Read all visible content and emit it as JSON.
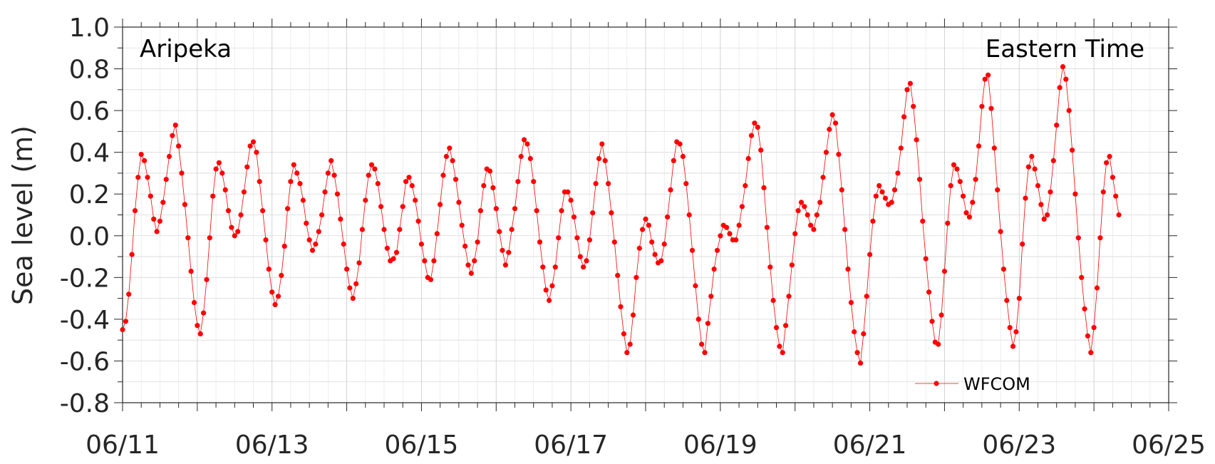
{
  "chart_data": {
    "type": "line",
    "station": "Aripeka",
    "timezone": "Eastern Time",
    "ylabel": "Sea level (m)",
    "xlabel": "",
    "ylim": [
      -0.8,
      1.0
    ],
    "xlim": [
      "06/11",
      "06/25"
    ],
    "y_ticks": [
      "1.0",
      "0.8",
      "0.6",
      "0.4",
      "0.2",
      "0.0",
      "-0.2",
      "-0.4",
      "-0.6",
      "-0.8"
    ],
    "x_ticks": [
      "06/11",
      "06/13",
      "06/15",
      "06/17",
      "06/19",
      "06/21",
      "06/23",
      "06/25"
    ],
    "grid": true,
    "legend_position": "bottom-right",
    "line_color": "#ff0000",
    "series": [
      {
        "name": "WFCOM",
        "start": "06/11 00:00",
        "interval_hours": 1,
        "values": [
          -0.45,
          -0.41,
          -0.28,
          -0.09,
          0.12,
          0.28,
          0.39,
          0.36,
          0.28,
          0.19,
          0.08,
          0.02,
          0.07,
          0.16,
          0.27,
          0.38,
          0.48,
          0.53,
          0.43,
          0.3,
          0.15,
          -0.01,
          -0.17,
          -0.32,
          -0.43,
          -0.47,
          -0.37,
          -0.21,
          -0.01,
          0.19,
          0.32,
          0.35,
          0.3,
          0.22,
          0.12,
          0.04,
          0.0,
          0.02,
          0.1,
          0.21,
          0.33,
          0.43,
          0.45,
          0.4,
          0.26,
          0.12,
          -0.02,
          -0.16,
          -0.27,
          -0.33,
          -0.29,
          -0.19,
          -0.05,
          0.13,
          0.26,
          0.34,
          0.3,
          0.25,
          0.17,
          0.06,
          -0.02,
          -0.07,
          -0.04,
          0.02,
          0.1,
          0.21,
          0.3,
          0.36,
          0.29,
          0.2,
          0.08,
          -0.04,
          -0.16,
          -0.25,
          -0.3,
          -0.23,
          -0.13,
          0.03,
          0.17,
          0.29,
          0.34,
          0.32,
          0.25,
          0.14,
          0.03,
          -0.06,
          -0.12,
          -0.11,
          -0.08,
          0.03,
          0.14,
          0.26,
          0.28,
          0.24,
          0.17,
          0.07,
          -0.04,
          -0.12,
          -0.2,
          -0.21,
          -0.12,
          0.01,
          0.15,
          0.29,
          0.38,
          0.42,
          0.36,
          0.27,
          0.16,
          0.05,
          -0.05,
          -0.14,
          -0.18,
          -0.12,
          -0.03,
          0.12,
          0.24,
          0.32,
          0.31,
          0.23,
          0.13,
          0.02,
          -0.07,
          -0.14,
          -0.08,
          0.03,
          0.13,
          0.26,
          0.38,
          0.46,
          0.44,
          0.37,
          0.26,
          0.12,
          -0.03,
          -0.15,
          -0.26,
          -0.31,
          -0.24,
          -0.15,
          -0.01,
          0.12,
          0.21,
          0.21,
          0.17,
          0.09,
          -0.01,
          -0.1,
          -0.15,
          -0.12,
          -0.02,
          0.11,
          0.25,
          0.37,
          0.44,
          0.36,
          0.25,
          0.11,
          -0.03,
          -0.19,
          -0.34,
          -0.47,
          -0.56,
          -0.52,
          -0.38,
          -0.2,
          -0.06,
          0.03,
          0.08,
          0.05,
          -0.03,
          -0.09,
          -0.13,
          -0.12,
          -0.04,
          0.09,
          0.22,
          0.36,
          0.45,
          0.44,
          0.38,
          0.25,
          0.1,
          -0.07,
          -0.24,
          -0.4,
          -0.52,
          -0.56,
          -0.42,
          -0.29,
          -0.16,
          -0.07,
          0.0,
          0.05,
          0.04,
          0.01,
          -0.02,
          -0.02,
          0.05,
          0.14,
          0.24,
          0.37,
          0.48,
          0.54,
          0.52,
          0.41,
          0.23,
          0.04,
          -0.15,
          -0.31,
          -0.44,
          -0.53,
          -0.56,
          -0.43,
          -0.29,
          -0.14,
          0.01,
          0.12,
          0.16,
          0.14,
          0.1,
          0.05,
          0.03,
          0.1,
          0.16,
          0.28,
          0.4,
          0.51,
          0.58,
          0.54,
          0.39,
          0.22,
          0.03,
          -0.16,
          -0.32,
          -0.46,
          -0.56,
          -0.61,
          -0.47,
          -0.29,
          -0.09,
          0.07,
          0.19,
          0.24,
          0.21,
          0.18,
          0.15,
          0.16,
          0.22,
          0.3,
          0.42,
          0.57,
          0.7,
          0.73,
          0.62,
          0.46,
          0.27,
          0.07,
          -0.11,
          -0.27,
          -0.41,
          -0.51,
          -0.52,
          -0.38,
          -0.17,
          0.06,
          0.24,
          0.34,
          0.32,
          0.26,
          0.19,
          0.11,
          0.09,
          0.16,
          0.27,
          0.43,
          0.62,
          0.75,
          0.77,
          0.61,
          0.42,
          0.22,
          0.02,
          -0.16,
          -0.31,
          -0.44,
          -0.53,
          -0.46,
          -0.3,
          -0.04,
          0.18,
          0.33,
          0.38,
          0.32,
          0.24,
          0.15,
          0.08,
          0.1,
          0.21,
          0.36,
          0.53,
          0.71,
          0.81,
          0.75,
          0.6,
          0.41,
          0.2,
          -0.01,
          -0.2,
          -0.35,
          -0.48,
          -0.56,
          -0.44,
          -0.25,
          -0.01,
          0.21,
          0.35,
          0.38,
          0.28,
          0.19,
          0.1
        ]
      }
    ]
  }
}
